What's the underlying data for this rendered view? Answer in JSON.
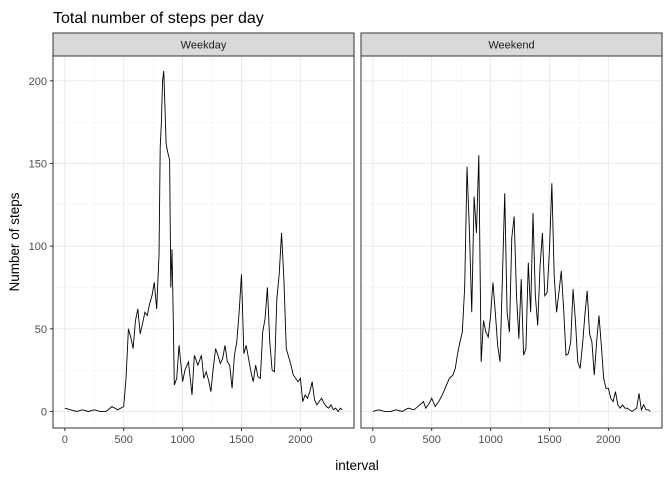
{
  "chart_data": {
    "type": "line",
    "title": "Total number of steps per day",
    "xlabel": "interval",
    "ylabel": "Number of steps",
    "xlim": [
      -100,
      2455
    ],
    "ylim": [
      -10,
      215
    ],
    "x_ticks": [
      0,
      500,
      1000,
      1500,
      2000
    ],
    "y_ticks": [
      0,
      50,
      100,
      150,
      200
    ],
    "grid": true,
    "panels": [
      {
        "name": "Weekday",
        "x": [
          0,
          50,
          100,
          150,
          200,
          250,
          300,
          350,
          400,
          450,
          500,
          520,
          540,
          560,
          580,
          600,
          620,
          640,
          660,
          680,
          700,
          720,
          740,
          760,
          780,
          800,
          810,
          820,
          830,
          840,
          850,
          860,
          870,
          880,
          890,
          900,
          910,
          920,
          930,
          950,
          970,
          1000,
          1020,
          1050,
          1080,
          1100,
          1130,
          1160,
          1180,
          1200,
          1220,
          1240,
          1260,
          1280,
          1300,
          1320,
          1340,
          1360,
          1380,
          1400,
          1420,
          1440,
          1460,
          1480,
          1500,
          1520,
          1540,
          1560,
          1580,
          1600,
          1620,
          1640,
          1660,
          1680,
          1700,
          1720,
          1740,
          1760,
          1780,
          1800,
          1820,
          1840,
          1860,
          1880,
          1900,
          1920,
          1940,
          1960,
          1980,
          2000,
          2020,
          2040,
          2060,
          2080,
          2100,
          2120,
          2140,
          2160,
          2180,
          2200,
          2220,
          2240,
          2260,
          2280,
          2300,
          2320,
          2340,
          2355
        ],
        "values": [
          2,
          1,
          0,
          1,
          0,
          1,
          0,
          0,
          3,
          1,
          3,
          20,
          50,
          45,
          38,
          55,
          62,
          47,
          53,
          60,
          58,
          65,
          70,
          78,
          62,
          95,
          160,
          175,
          200,
          206,
          185,
          162,
          158,
          155,
          152,
          75,
          98,
          60,
          16,
          20,
          40,
          18,
          25,
          30,
          10,
          34,
          28,
          34,
          20,
          24,
          19,
          12,
          26,
          38,
          34,
          29,
          32,
          40,
          30,
          28,
          14,
          34,
          42,
          60,
          83,
          35,
          40,
          32,
          24,
          18,
          28,
          21,
          20,
          48,
          56,
          75,
          42,
          25,
          24,
          68,
          83,
          108,
          80,
          38,
          33,
          28,
          22,
          20,
          18,
          20,
          6,
          10,
          8,
          12,
          18,
          7,
          4,
          6,
          8,
          5,
          3,
          2,
          4,
          1,
          2,
          0,
          2,
          1
        ]
      },
      {
        "name": "Weekend",
        "x": [
          0,
          50,
          100,
          150,
          200,
          250,
          300,
          350,
          400,
          430,
          450,
          480,
          500,
          530,
          560,
          590,
          620,
          650,
          680,
          700,
          720,
          740,
          760,
          780,
          800,
          820,
          840,
          860,
          880,
          900,
          920,
          940,
          960,
          980,
          1000,
          1020,
          1040,
          1060,
          1080,
          1100,
          1120,
          1140,
          1160,
          1180,
          1200,
          1220,
          1240,
          1260,
          1280,
          1300,
          1320,
          1340,
          1360,
          1380,
          1400,
          1420,
          1440,
          1460,
          1480,
          1500,
          1520,
          1540,
          1560,
          1580,
          1600,
          1620,
          1640,
          1660,
          1680,
          1700,
          1720,
          1740,
          1760,
          1780,
          1800,
          1820,
          1840,
          1860,
          1880,
          1900,
          1920,
          1940,
          1960,
          1980,
          2000,
          2020,
          2040,
          2060,
          2080,
          2100,
          2120,
          2140,
          2160,
          2180,
          2200,
          2220,
          2240,
          2260,
          2280,
          2300,
          2320,
          2340,
          2355
        ],
        "values": [
          0,
          1,
          0,
          0,
          1,
          0,
          2,
          1,
          4,
          6,
          2,
          5,
          8,
          3,
          6,
          10,
          15,
          20,
          22,
          26,
          35,
          42,
          48,
          75,
          148,
          110,
          60,
          130,
          108,
          155,
          30,
          55,
          48,
          45,
          58,
          78,
          60,
          40,
          30,
          80,
          132,
          60,
          48,
          105,
          118,
          70,
          44,
          80,
          34,
          38,
          90,
          60,
          120,
          70,
          52,
          88,
          108,
          70,
          72,
          98,
          138,
          82,
          60,
          72,
          85,
          62,
          34,
          35,
          42,
          74,
          55,
          30,
          26,
          40,
          58,
          73,
          47,
          42,
          22,
          42,
          58,
          40,
          20,
          14,
          14,
          8,
          6,
          12,
          4,
          2,
          4,
          2,
          2,
          1,
          0,
          1,
          2,
          11,
          1,
          4,
          1,
          1,
          0
        ]
      }
    ]
  }
}
